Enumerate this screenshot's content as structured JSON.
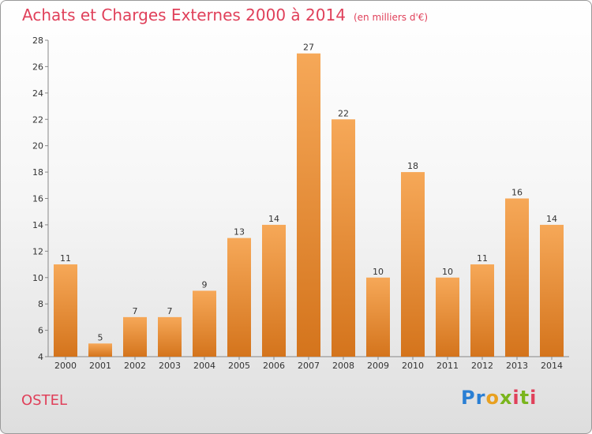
{
  "title": "Achats et Charges Externes 2000 à 2014",
  "title_unit": "(en milliers d'€)",
  "place": "OSTEL",
  "logo": {
    "letters": [
      "P",
      "r",
      "o",
      "x",
      "i",
      "t",
      "i"
    ],
    "colors": [
      "#2a7fd4",
      "#2a7fd4",
      "#e8a020",
      "#7ab51d",
      "#e0405a",
      "#7ab51d",
      "#e0405a"
    ]
  },
  "colors": {
    "bar_top": "#f6a858",
    "bar_bottom": "#d4741c",
    "title": "#e0405a"
  },
  "chart_data": {
    "type": "bar",
    "categories": [
      "2000",
      "2001",
      "2002",
      "2003",
      "2004",
      "2005",
      "2006",
      "2007",
      "2008",
      "2009",
      "2010",
      "2011",
      "2012",
      "2013",
      "2014"
    ],
    "values": [
      11,
      5,
      7,
      7,
      9,
      13,
      14,
      27,
      22,
      10,
      18,
      10,
      11,
      16,
      14
    ],
    "ylim": [
      4,
      28
    ],
    "yticks": [
      4,
      6,
      8,
      10,
      12,
      14,
      16,
      18,
      20,
      22,
      24,
      26,
      28
    ],
    "grid": false,
    "xlabel": "",
    "ylabel": ""
  }
}
